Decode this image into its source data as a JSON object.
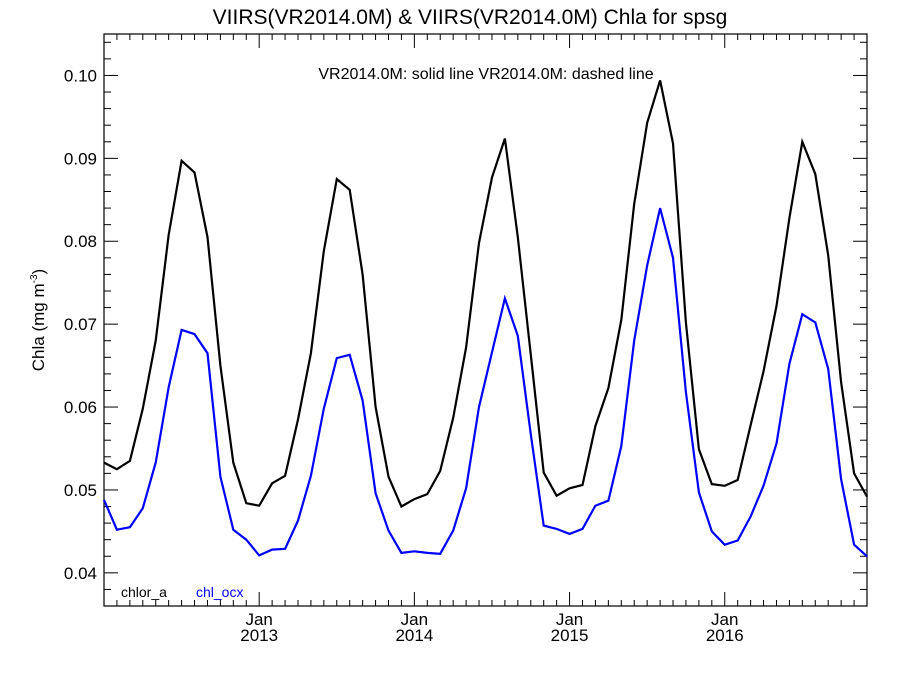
{
  "chart_data": {
    "type": "line",
    "title": "VIIRS(VR2014.0M) & VIIRS(VR2014.0M)  Chla for spsg",
    "annotation": "VR2014.0M: solid line   VR2014.0M: dashed line",
    "ylabel": "Chla (mg m",
    "ylabel_sup": "-3",
    "ylabel_end": ")",
    "ylim": [
      0.036,
      0.105
    ],
    "xlim": [
      "2012-01",
      "2016-12"
    ],
    "yticks": [
      "0.04",
      "0.05",
      "0.06",
      "0.07",
      "0.08",
      "0.09",
      "0.10"
    ],
    "xtick_month": "Jan",
    "xticks": [
      {
        "date": "2013-01",
        "year": "2013"
      },
      {
        "date": "2014-01",
        "year": "2014"
      },
      {
        "date": "2015-01",
        "year": "2015"
      },
      {
        "date": "2016-01",
        "year": "2016"
      }
    ],
    "grid": false,
    "legend_position": "bottom-left",
    "legend": [
      {
        "name": "chlor_a",
        "color": "#000000"
      },
      {
        "name": "chl_ocx",
        "color": "#0000ff"
      }
    ],
    "x": [
      "2012-01",
      "2012-02",
      "2012-03",
      "2012-04",
      "2012-05",
      "2012-06",
      "2012-07",
      "2012-08",
      "2012-09",
      "2012-10",
      "2012-11",
      "2012-12",
      "2013-01",
      "2013-02",
      "2013-03",
      "2013-04",
      "2013-05",
      "2013-06",
      "2013-07",
      "2013-08",
      "2013-09",
      "2013-10",
      "2013-11",
      "2013-12",
      "2014-01",
      "2014-02",
      "2014-03",
      "2014-04",
      "2014-05",
      "2014-06",
      "2014-07",
      "2014-08",
      "2014-09",
      "2014-10",
      "2014-11",
      "2014-12",
      "2015-01",
      "2015-02",
      "2015-03",
      "2015-04",
      "2015-05",
      "2015-06",
      "2015-07",
      "2015-08",
      "2015-09",
      "2015-10",
      "2015-11",
      "2015-12",
      "2016-01",
      "2016-02",
      "2016-03",
      "2016-04",
      "2016-05",
      "2016-06",
      "2016-07",
      "2016-08",
      "2016-09",
      "2016-10",
      "2016-11",
      "2016-12"
    ],
    "series": [
      {
        "name": "chlor_a",
        "color": "#000000",
        "values": [
          0.0533,
          0.0525,
          0.0535,
          0.0598,
          0.068,
          0.0808,
          0.0897,
          0.0883,
          0.0805,
          0.065,
          0.0533,
          0.0484,
          0.0481,
          0.0508,
          0.0517,
          0.0585,
          0.0665,
          0.0788,
          0.0875,
          0.0862,
          0.076,
          0.06,
          0.0516,
          0.048,
          0.0489,
          0.0495,
          0.0523,
          0.0587,
          0.0672,
          0.0798,
          0.0877,
          0.0924,
          0.0805,
          0.0663,
          0.0521,
          0.0493,
          0.0502,
          0.0506,
          0.0577,
          0.0623,
          0.0705,
          0.0845,
          0.0943,
          0.0994,
          0.0918,
          0.0702,
          0.0549,
          0.0507,
          0.0505,
          0.0512,
          0.0578,
          0.0643,
          0.0722,
          0.0828,
          0.092,
          0.0881,
          0.0783,
          0.063,
          0.052,
          0.0492
        ]
      },
      {
        "name": "chl_ocx",
        "color": "#0000ff",
        "values": [
          0.0488,
          0.0452,
          0.0455,
          0.0478,
          0.0533,
          0.0624,
          0.0693,
          0.0688,
          0.0665,
          0.0516,
          0.0452,
          0.044,
          0.0421,
          0.0428,
          0.0429,
          0.0463,
          0.0517,
          0.0598,
          0.0659,
          0.0663,
          0.0608,
          0.0496,
          0.0451,
          0.0424,
          0.0426,
          0.0424,
          0.0423,
          0.0451,
          0.0502,
          0.06,
          0.0666,
          0.0731,
          0.0686,
          0.0567,
          0.0457,
          0.0453,
          0.0447,
          0.0453,
          0.0481,
          0.0487,
          0.0553,
          0.068,
          0.0771,
          0.084,
          0.078,
          0.0618,
          0.0497,
          0.045,
          0.0434,
          0.0439,
          0.0468,
          0.0505,
          0.0556,
          0.0652,
          0.0712,
          0.0702,
          0.0646,
          0.0513,
          0.0434,
          0.042
        ]
      }
    ]
  }
}
